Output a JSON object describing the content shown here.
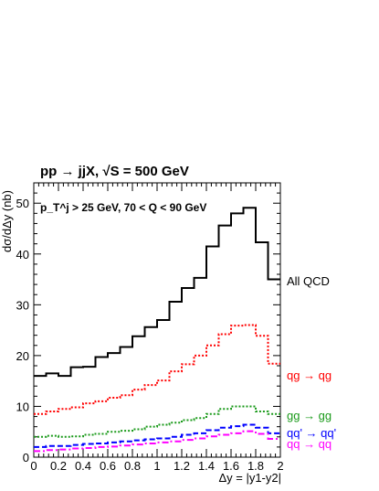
{
  "chart_data": {
    "type": "line",
    "title": "pp → jjX, √S = 500 GeV",
    "subtitle": "p_T^j > 25 GeV, 70 < Q < 90 GeV",
    "xlabel": "Δy = |y1-y2|",
    "ylabel": "dσ/dΔy (nb)",
    "xlim": [
      0,
      2
    ],
    "ylim": [
      0,
      54
    ],
    "xticks": [
      "0",
      "0.2",
      "0.4",
      "0.6",
      "0.8",
      "1",
      "1.2",
      "1.4",
      "1.6",
      "1.8",
      "2"
    ],
    "yticks": [
      "0",
      "10",
      "20",
      "30",
      "40",
      "50"
    ],
    "bin_edges": [
      0,
      0.1,
      0.2,
      0.3,
      0.4,
      0.5,
      0.6,
      0.7,
      0.8,
      0.9,
      1.0,
      1.1,
      1.2,
      1.3,
      1.4,
      1.5,
      1.6,
      1.7,
      1.8,
      1.9,
      2.0
    ],
    "series": [
      {
        "name": "All QCD",
        "color": "#000000",
        "dash": "solid",
        "values": [
          16.0,
          16.5,
          16.0,
          17.7,
          17.8,
          19.7,
          20.5,
          21.7,
          23.8,
          25.6,
          27.0,
          30.6,
          33.3,
          35.3,
          41.5,
          45.6,
          48.0,
          49.1,
          42.3,
          35.0
        ]
      },
      {
        "name": "qg → qg",
        "color": "#ff0000",
        "dash": "dotted",
        "values": [
          8.5,
          9.0,
          9.5,
          9.8,
          10.6,
          11.0,
          11.7,
          12.2,
          13.3,
          14.2,
          15.1,
          16.9,
          18.3,
          20.0,
          22.0,
          24.2,
          25.9,
          26.0,
          23.9,
          18.4
        ]
      },
      {
        "name": "gg → gg",
        "color": "#1a9a1a",
        "dash": "dotted",
        "values": [
          4.0,
          4.2,
          4.0,
          4.1,
          4.4,
          4.6,
          5.0,
          5.2,
          5.5,
          6.0,
          6.4,
          6.8,
          7.3,
          7.7,
          8.5,
          9.5,
          10.0,
          10.0,
          9.0,
          8.5
        ]
      },
      {
        "name": "qq' → qq'",
        "color": "#0000ff",
        "dash": "dashed",
        "values": [
          2.0,
          2.2,
          2.2,
          2.4,
          2.6,
          2.7,
          2.9,
          3.1,
          3.3,
          3.5,
          3.7,
          4.0,
          4.4,
          4.7,
          5.3,
          5.8,
          6.1,
          6.4,
          5.8,
          4.7
        ]
      },
      {
        "name": "qq → qq",
        "color": "#ff00ff",
        "dash": "dashdot",
        "values": [
          1.2,
          1.4,
          1.5,
          1.7,
          1.8,
          2.0,
          2.1,
          2.3,
          2.5,
          2.7,
          2.9,
          3.1,
          3.4,
          3.7,
          4.1,
          4.4,
          4.7,
          5.1,
          4.6,
          3.6
        ]
      }
    ]
  }
}
